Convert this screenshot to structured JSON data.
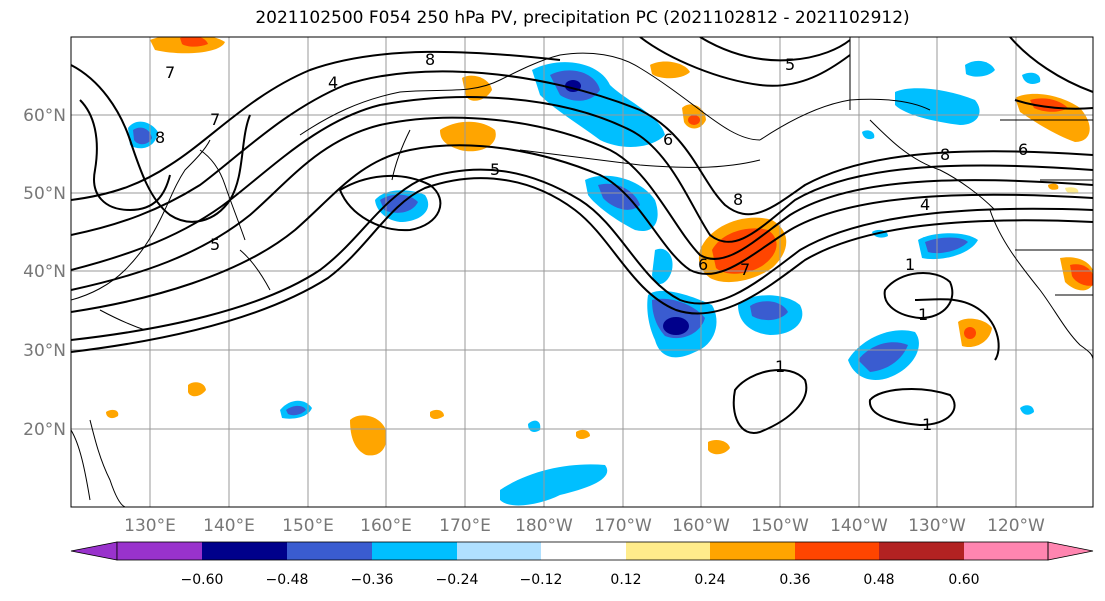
{
  "title": "2021102500 F054 250 hPa PV, precipitation PC (2021102812 - 2021102912)",
  "map": {
    "lat_labels": [
      "60°N",
      "50°N",
      "40°N",
      "30°N",
      "20°N"
    ],
    "lon_labels": [
      "130°E",
      "140°E",
      "150°E",
      "160°E",
      "170°E",
      "180°W",
      "170°W",
      "160°W",
      "150°W",
      "140°W",
      "130°W",
      "120°W"
    ],
    "contour_labels": [
      "1",
      "1",
      "1",
      "1",
      "4",
      "4",
      "5",
      "5",
      "5",
      "6",
      "6",
      "6",
      "7",
      "7",
      "7",
      "8",
      "8",
      "8",
      "8"
    ],
    "label_color": "#777777"
  },
  "colorbar": {
    "colors": [
      "#9932cc",
      "#00008b",
      "#3a5cd0",
      "#00bfff",
      "#b0e0ff",
      "#ffffff",
      "#ffec8b",
      "#ffa500",
      "#ff4500",
      "#b22222",
      "#ff85b0"
    ],
    "tick_labels": [
      "−0.60",
      "−0.48",
      "−0.36",
      "−0.24",
      "−0.12",
      "0.12",
      "0.24",
      "0.36",
      "0.48",
      "0.60"
    ]
  }
}
